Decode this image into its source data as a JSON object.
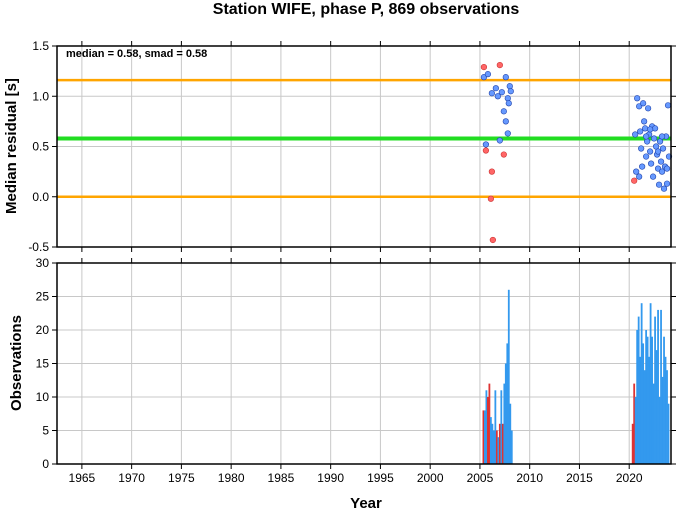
{
  "title": "Station WIFE, phase P, 869 observations",
  "colors": {
    "upper_band": "#ffa500",
    "median_line": "#22dd22",
    "point_normal": "#6699ff",
    "point_outlier": "#ff6666",
    "bar_normal": "#3399ee",
    "bar_outlier": "#dd3333",
    "grid": "#c8c8c8"
  },
  "chart_data": [
    {
      "type": "scatter",
      "ylabel": "Median residual [s]",
      "xlim": [
        1962.5,
        2024.2
      ],
      "ylim": [
        -0.5,
        1.5
      ],
      "yticks": [
        -0.5,
        0.0,
        0.5,
        1.0,
        1.5
      ],
      "ytick_labels": [
        "-0.5",
        "0.0",
        "0.5",
        "1.0",
        "1.5"
      ],
      "annotation": "median = 0.58, smad = 0.58",
      "hlines": [
        {
          "y": 1.16,
          "color": "orange"
        },
        {
          "y": 0.58,
          "color": "green"
        },
        {
          "y": 0.0,
          "color": "orange"
        }
      ],
      "series": [
        {
          "role": "normal",
          "points": [
            [
              2005.4,
              1.19
            ],
            [
              2005.8,
              1.22
            ],
            [
              2006.2,
              1.03
            ],
            [
              2006.6,
              1.08
            ],
            [
              2006.8,
              1.0
            ],
            [
              2007.2,
              1.04
            ],
            [
              2007.4,
              0.85
            ],
            [
              2007.6,
              1.19
            ],
            [
              2007.8,
              0.98
            ],
            [
              2008.0,
              1.1
            ],
            [
              2007.9,
              0.93
            ],
            [
              2008.1,
              1.05
            ],
            [
              2007.6,
              0.75
            ],
            [
              2007.8,
              0.63
            ],
            [
              2007.0,
              0.56
            ],
            [
              2005.6,
              0.52
            ],
            [
              2020.6,
              0.62
            ],
            [
              2020.8,
              0.98
            ],
            [
              2021.0,
              0.9
            ],
            [
              2021.1,
              0.65
            ],
            [
              2021.2,
              0.48
            ],
            [
              2021.3,
              0.3
            ],
            [
              2021.4,
              0.93
            ],
            [
              2021.5,
              0.75
            ],
            [
              2021.6,
              0.68
            ],
            [
              2021.7,
              0.4
            ],
            [
              2021.8,
              0.55
            ],
            [
              2021.9,
              0.88
            ],
            [
              2022.0,
              0.62
            ],
            [
              2022.1,
              0.45
            ],
            [
              2022.2,
              0.33
            ],
            [
              2022.3,
              0.7
            ],
            [
              2022.4,
              0.2
            ],
            [
              2022.5,
              0.58
            ],
            [
              2022.6,
              0.68
            ],
            [
              2022.7,
              0.5
            ],
            [
              2022.8,
              0.42
            ],
            [
              2022.9,
              0.28
            ],
            [
              2023.0,
              0.12
            ],
            [
              2023.1,
              0.55
            ],
            [
              2023.2,
              0.35
            ],
            [
              2023.3,
              0.25
            ],
            [
              2023.4,
              0.48
            ],
            [
              2023.5,
              0.08
            ],
            [
              2023.6,
              0.3
            ],
            [
              2023.7,
              0.6
            ],
            [
              2023.8,
              0.13
            ],
            [
              2023.9,
              0.91
            ],
            [
              2024.0,
              0.4
            ],
            [
              2020.7,
              0.25
            ],
            [
              2021.0,
              0.2
            ],
            [
              2021.7,
              0.6
            ],
            [
              2022.1,
              0.67
            ],
            [
              2022.9,
              0.45
            ],
            [
              2023.3,
              0.6
            ],
            [
              2023.8,
              0.28
            ]
          ]
        },
        {
          "role": "outlier",
          "points": [
            [
              2005.4,
              1.29
            ],
            [
              2007.0,
              1.31
            ],
            [
              2005.6,
              0.46
            ],
            [
              2007.4,
              0.42
            ],
            [
              2006.2,
              0.25
            ],
            [
              2006.1,
              -0.02
            ],
            [
              2006.3,
              -0.43
            ],
            [
              2020.5,
              0.16
            ]
          ]
        }
      ]
    },
    {
      "type": "bar",
      "xlabel": "Year",
      "ylabel": "Observations",
      "xlim": [
        1962.5,
        2024.2
      ],
      "ylim": [
        0,
        30
      ],
      "xticks": [
        1965,
        1970,
        1975,
        1980,
        1985,
        1990,
        1995,
        2000,
        2005,
        2010,
        2015,
        2020
      ],
      "xtick_labels": [
        "1965",
        "1970",
        "1975",
        "1980",
        "1985",
        "1990",
        "1995",
        "2000",
        "2005",
        "2010",
        "2015",
        "2020"
      ],
      "yticks": [
        0,
        5,
        10,
        15,
        20,
        25,
        30
      ],
      "ytick_labels": [
        "0",
        "5",
        "10",
        "15",
        "20",
        "25",
        "30"
      ],
      "bars": [
        {
          "x": 2005.35,
          "v": 8,
          "o": 1
        },
        {
          "x": 2005.5,
          "v": 8,
          "o": 0
        },
        {
          "x": 2005.65,
          "v": 11,
          "o": 0
        },
        {
          "x": 2005.8,
          "v": 10,
          "o": 1
        },
        {
          "x": 2005.95,
          "v": 12,
          "o": 1
        },
        {
          "x": 2006.1,
          "v": 7,
          "o": 0
        },
        {
          "x": 2006.25,
          "v": 6,
          "o": 0
        },
        {
          "x": 2006.4,
          "v": 5,
          "o": 0
        },
        {
          "x": 2006.55,
          "v": 11,
          "o": 0
        },
        {
          "x": 2006.7,
          "v": 5,
          "o": 1
        },
        {
          "x": 2006.85,
          "v": 4,
          "o": 0
        },
        {
          "x": 2007.0,
          "v": 6,
          "o": 1
        },
        {
          "x": 2007.15,
          "v": 11,
          "o": 0
        },
        {
          "x": 2007.3,
          "v": 6,
          "o": 1
        },
        {
          "x": 2007.45,
          "v": 12,
          "o": 0
        },
        {
          "x": 2007.6,
          "v": 15,
          "o": 0
        },
        {
          "x": 2007.75,
          "v": 18,
          "o": 0
        },
        {
          "x": 2007.9,
          "v": 26,
          "o": 0
        },
        {
          "x": 2008.05,
          "v": 9,
          "o": 0
        },
        {
          "x": 2008.2,
          "v": 5,
          "o": 0
        },
        {
          "x": 2020.35,
          "v": 6,
          "o": 1
        },
        {
          "x": 2020.5,
          "v": 12,
          "o": 1
        },
        {
          "x": 2020.65,
          "v": 10,
          "o": 0
        },
        {
          "x": 2020.8,
          "v": 20,
          "o": 0
        },
        {
          "x": 2020.95,
          "v": 22,
          "o": 0
        },
        {
          "x": 2021.1,
          "v": 16,
          "o": 0
        },
        {
          "x": 2021.25,
          "v": 24,
          "o": 0
        },
        {
          "x": 2021.4,
          "v": 18,
          "o": 0
        },
        {
          "x": 2021.55,
          "v": 14,
          "o": 0
        },
        {
          "x": 2021.7,
          "v": 20,
          "o": 0
        },
        {
          "x": 2021.85,
          "v": 19,
          "o": 0
        },
        {
          "x": 2022.0,
          "v": 16,
          "o": 0
        },
        {
          "x": 2022.15,
          "v": 24,
          "o": 0
        },
        {
          "x": 2022.3,
          "v": 19,
          "o": 0
        },
        {
          "x": 2022.45,
          "v": 12,
          "o": 0
        },
        {
          "x": 2022.6,
          "v": 22,
          "o": 0
        },
        {
          "x": 2022.75,
          "v": 17,
          "o": 0
        },
        {
          "x": 2022.9,
          "v": 23,
          "o": 0
        },
        {
          "x": 2023.05,
          "v": 10,
          "o": 0
        },
        {
          "x": 2023.2,
          "v": 23,
          "o": 0
        },
        {
          "x": 2023.35,
          "v": 13,
          "o": 0
        },
        {
          "x": 2023.5,
          "v": 19,
          "o": 0
        },
        {
          "x": 2023.65,
          "v": 16,
          "o": 0
        },
        {
          "x": 2023.8,
          "v": 14,
          "o": 0
        },
        {
          "x": 2023.95,
          "v": 9,
          "o": 0
        }
      ]
    }
  ]
}
